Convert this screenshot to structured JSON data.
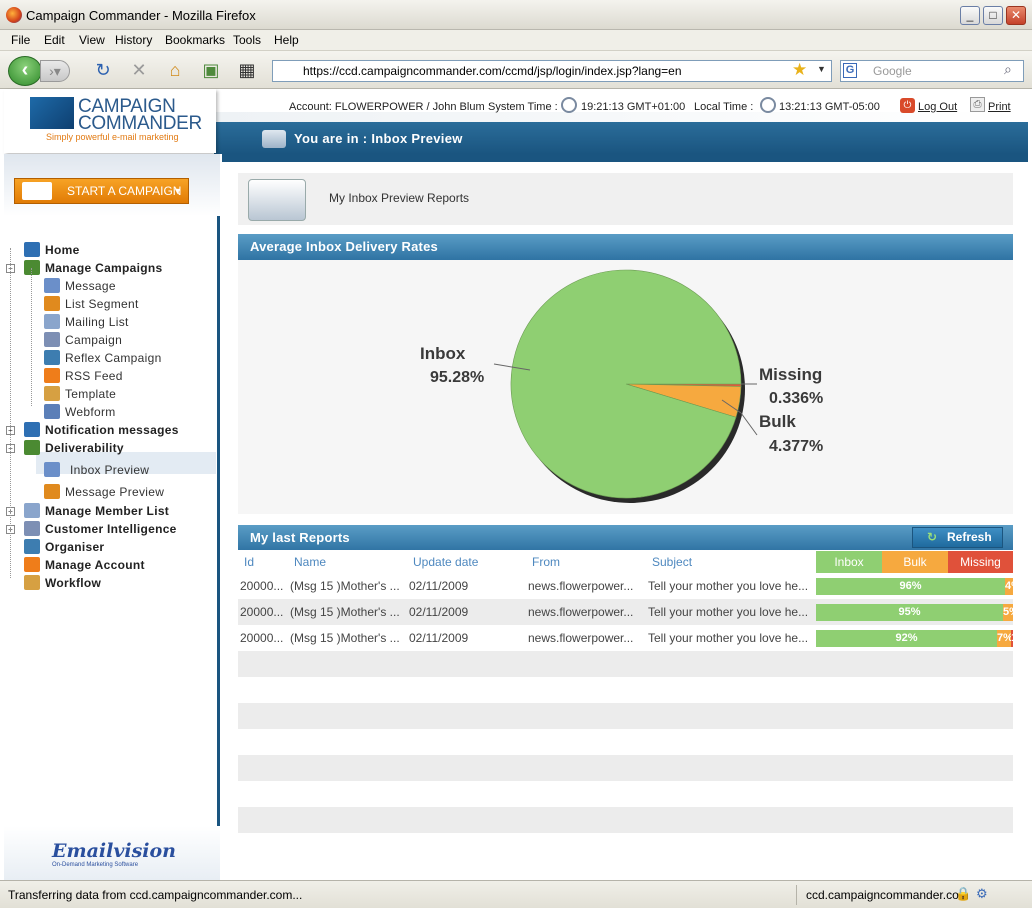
{
  "window": {
    "title": "Campaign Commander - Mozilla Firefox",
    "controls": [
      "_",
      "□",
      "✕"
    ]
  },
  "menu": [
    "File",
    "Edit",
    "View",
    "History",
    "Bookmarks",
    "Tools",
    "Help"
  ],
  "toolbar": {
    "url": "https://ccd.campaigncommander.com/ccmd/jsp/login/index.jsp?lang=en",
    "search_placeholder": "Google"
  },
  "header": {
    "logo_line1": "CAMPAIGN",
    "logo_line2": "COMMANDER",
    "logo_tagline": "Simply powerful e-mail marketing",
    "account": "Account:  FLOWERPOWER / John Blum",
    "system_time_label": "System Time :",
    "system_time": "19:21:13 GMT+01:00",
    "local_time_label": "Local Time :",
    "local_time": "13:21:13 GMT-05:00",
    "logout": "Log Out",
    "print": "Print",
    "location": "You are in : Inbox Preview"
  },
  "sidebar": {
    "start_campaign": "START A CAMPAIGN",
    "items": [
      {
        "label": "Home",
        "level": 0
      },
      {
        "label": "Manage Campaigns",
        "level": 0
      },
      {
        "label": "Message",
        "level": 1
      },
      {
        "label": "List Segment",
        "level": 1
      },
      {
        "label": "Mailing List",
        "level": 1
      },
      {
        "label": "Campaign",
        "level": 1
      },
      {
        "label": "Reflex Campaign",
        "level": 1
      },
      {
        "label": "RSS Feed",
        "level": 1
      },
      {
        "label": "Template",
        "level": 1
      },
      {
        "label": "Webform",
        "level": 1
      },
      {
        "label": "Notification messages",
        "level": 0
      },
      {
        "label": "Deliverability",
        "level": 0
      },
      {
        "label": "Inbox Preview",
        "level": 1
      },
      {
        "label": "Message Preview",
        "level": 1
      },
      {
        "label": "Manage Member List",
        "level": 0
      },
      {
        "label": "Customer Intelligence",
        "level": 0
      },
      {
        "label": "Organiser",
        "level": 0
      },
      {
        "label": "Manage Account",
        "level": 0
      },
      {
        "label": "Workflow",
        "level": 0
      }
    ],
    "footer_logo": "Emailvision",
    "footer_tagline": "On-Demand Marketing Software"
  },
  "main": {
    "reports_title": "My Inbox Preview Reports",
    "avg_title": "Average Inbox Delivery Rates",
    "last_title": "My last Reports",
    "refresh": "Refresh",
    "columns": [
      "Id",
      "Name",
      "Update date",
      "From",
      "Subject"
    ],
    "bar_headers": [
      "Inbox",
      "Bulk",
      "Missing"
    ],
    "rows": [
      {
        "id": "20000...",
        "name": "(Msg 15 )Mother's ...",
        "date": "02/11/2009",
        "from": "news.flowerpower...",
        "subject": "Tell your mother you love he...",
        "inbox": 96,
        "bulk": 4,
        "missing": 0,
        "inbox_label": "96%",
        "bulk_label": "4%",
        "missing_label": ""
      },
      {
        "id": "20000...",
        "name": "(Msg 15 )Mother's ...",
        "date": "02/11/2009",
        "from": "news.flowerpower...",
        "subject": "Tell your mother you love he...",
        "inbox": 95,
        "bulk": 5,
        "missing": 0,
        "inbox_label": "95%",
        "bulk_label": "5%",
        "missing_label": ""
      },
      {
        "id": "20000...",
        "name": "(Msg 15 )Mother's ...",
        "date": "02/11/2009",
        "from": "news.flowerpower...",
        "subject": "Tell your mother you love he...",
        "inbox": 92,
        "bulk": 7,
        "missing": 1,
        "inbox_label": "92%",
        "bulk_label": "7%",
        "missing_label": "1%"
      }
    ]
  },
  "chart_data": {
    "type": "pie",
    "slices": [
      {
        "label": "Inbox",
        "value": 95.28,
        "display": "95.28%",
        "color": "#8fcf72"
      },
      {
        "label": "Missing",
        "value": 0.336,
        "display": "0.336%",
        "color": "#e05a3e"
      },
      {
        "label": "Bulk",
        "value": 4.377,
        "display": "4.377%",
        "color": "#f6a93f"
      }
    ]
  },
  "colors": {
    "inbox": "#8fcf72",
    "bulk": "#f6a93f",
    "missing": "#e0513a",
    "header_band": "#1a5580"
  },
  "status": {
    "left": "Transferring data from ccd.campaigncommander.com...",
    "right": "ccd.campaigncommander.com"
  }
}
